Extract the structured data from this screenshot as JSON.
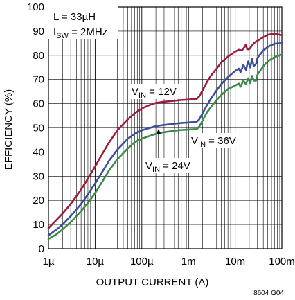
{
  "chart_data": {
    "type": "line",
    "title": "",
    "xlabel": "OUTPUT CURRENT (A)",
    "ylabel": "EFFICIENCY (%)",
    "xscale": "log",
    "xlim": [
      1e-06,
      0.1
    ],
    "ylim": [
      0,
      100
    ],
    "grid": true,
    "x_tick_labels": [
      "1µ",
      "10µ",
      "100µ",
      "1m",
      "10m",
      "100m"
    ],
    "y_ticks": [
      0,
      10,
      20,
      30,
      40,
      50,
      60,
      70,
      80,
      90,
      100
    ],
    "conditions": {
      "line1": "L = 33µH",
      "line2_prefix": "f",
      "line2_sub": "SW",
      "line2_suffix": " = 2MHz"
    },
    "figure_id": "8604 G04",
    "series": [
      {
        "name": "V_IN = 12V",
        "label_prefix": "V",
        "label_sub": "IN",
        "label_suffix": " = 12V",
        "color": "#9b1c3c",
        "points": [
          [
            1e-06,
            8.5
          ],
          [
            1.5e-06,
            12
          ],
          [
            2e-06,
            14.5
          ],
          [
            3e-06,
            18.5
          ],
          [
            5e-06,
            24.5
          ],
          [
            7e-06,
            29
          ],
          [
            1e-05,
            34
          ],
          [
            1.5e-05,
            40
          ],
          [
            2e-05,
            44
          ],
          [
            3e-05,
            49
          ],
          [
            5e-05,
            53.5
          ],
          [
            7e-05,
            56
          ],
          [
            0.0001,
            58
          ],
          [
            0.00015,
            59.5
          ],
          [
            0.0002,
            60.3
          ],
          [
            0.0003,
            60.8
          ],
          [
            0.0005,
            61.2
          ],
          [
            0.0007,
            61.5
          ],
          [
            0.001,
            61.7
          ],
          [
            0.0015,
            62
          ],
          [
            0.0017,
            63
          ],
          [
            0.002,
            65.5
          ],
          [
            0.0025,
            69
          ],
          [
            0.003,
            71.5
          ],
          [
            0.004,
            74.5
          ],
          [
            0.005,
            77
          ],
          [
            0.007,
            79.5
          ],
          [
            0.01,
            81.5
          ],
          [
            0.012,
            82.3
          ],
          [
            0.014,
            82
          ],
          [
            0.016,
            83.5
          ],
          [
            0.017,
            84.5
          ],
          [
            0.018,
            82.5
          ],
          [
            0.02,
            82.5
          ],
          [
            0.025,
            85
          ],
          [
            0.03,
            86
          ],
          [
            0.04,
            87.5
          ],
          [
            0.05,
            88.5
          ],
          [
            0.07,
            89
          ],
          [
            0.1,
            88.3
          ]
        ]
      },
      {
        "name": "V_IN = 24V",
        "label_prefix": "V",
        "label_sub": "IN",
        "label_suffix": " = 24V",
        "color": "#3b4e9a",
        "points": [
          [
            1e-06,
            5.5
          ],
          [
            1.5e-06,
            8
          ],
          [
            2e-06,
            10
          ],
          [
            3e-06,
            13.5
          ],
          [
            5e-06,
            18.5
          ],
          [
            7e-06,
            22.5
          ],
          [
            1e-05,
            27
          ],
          [
            1.5e-05,
            32.5
          ],
          [
            2e-05,
            36.5
          ],
          [
            3e-05,
            41
          ],
          [
            5e-05,
            45.5
          ],
          [
            7e-05,
            47.5
          ],
          [
            0.0001,
            49
          ],
          [
            0.00015,
            50
          ],
          [
            0.0002,
            50.7
          ],
          [
            0.0003,
            51.2
          ],
          [
            0.0005,
            51.7
          ],
          [
            0.0007,
            52
          ],
          [
            0.001,
            52.2
          ],
          [
            0.0015,
            52.5
          ],
          [
            0.0017,
            53.5
          ],
          [
            0.002,
            56
          ],
          [
            0.0025,
            59.5
          ],
          [
            0.003,
            62
          ],
          [
            0.004,
            65.5
          ],
          [
            0.005,
            68
          ],
          [
            0.007,
            71
          ],
          [
            0.01,
            73.5
          ],
          [
            0.012,
            74.5
          ],
          [
            0.013,
            73
          ],
          [
            0.015,
            76
          ],
          [
            0.017,
            74
          ],
          [
            0.019,
            77.5
          ],
          [
            0.021,
            75
          ],
          [
            0.023,
            78.5
          ],
          [
            0.025,
            75.5
          ],
          [
            0.028,
            76.5
          ],
          [
            0.03,
            79
          ],
          [
            0.04,
            82
          ],
          [
            0.05,
            83.5
          ],
          [
            0.07,
            84.8
          ],
          [
            0.1,
            85
          ]
        ]
      },
      {
        "name": "V_IN = 36V",
        "label_prefix": "V",
        "label_sub": "IN",
        "label_suffix": " = 36V",
        "color": "#3a8a4a",
        "points": [
          [
            1e-06,
            4
          ],
          [
            1.5e-06,
            6
          ],
          [
            2e-06,
            8
          ],
          [
            3e-06,
            11
          ],
          [
            5e-06,
            15.5
          ],
          [
            7e-06,
            19
          ],
          [
            1e-05,
            23
          ],
          [
            1.5e-05,
            28.5
          ],
          [
            2e-05,
            32.5
          ],
          [
            3e-05,
            37
          ],
          [
            5e-05,
            41.5
          ],
          [
            7e-05,
            44
          ],
          [
            0.0001,
            45.5
          ],
          [
            0.00015,
            46.7
          ],
          [
            0.0002,
            47.5
          ],
          [
            0.0003,
            48.2
          ],
          [
            0.0005,
            48.8
          ],
          [
            0.0007,
            49.1
          ],
          [
            0.001,
            49.3
          ],
          [
            0.0015,
            49.5
          ],
          [
            0.0017,
            50.5
          ],
          [
            0.002,
            53
          ],
          [
            0.0025,
            56.5
          ],
          [
            0.003,
            58.5
          ],
          [
            0.004,
            61.5
          ],
          [
            0.005,
            63.5
          ],
          [
            0.007,
            66
          ],
          [
            0.01,
            67.5
          ],
          [
            0.012,
            68.3
          ],
          [
            0.013,
            67
          ],
          [
            0.015,
            69.5
          ],
          [
            0.017,
            68
          ],
          [
            0.019,
            70.5
          ],
          [
            0.021,
            68.5
          ],
          [
            0.023,
            71.5
          ],
          [
            0.025,
            69.5
          ],
          [
            0.028,
            69.5
          ],
          [
            0.03,
            72
          ],
          [
            0.04,
            75.5
          ],
          [
            0.05,
            77.5
          ],
          [
            0.07,
            79.3
          ],
          [
            0.1,
            80.3
          ]
        ]
      }
    ]
  }
}
